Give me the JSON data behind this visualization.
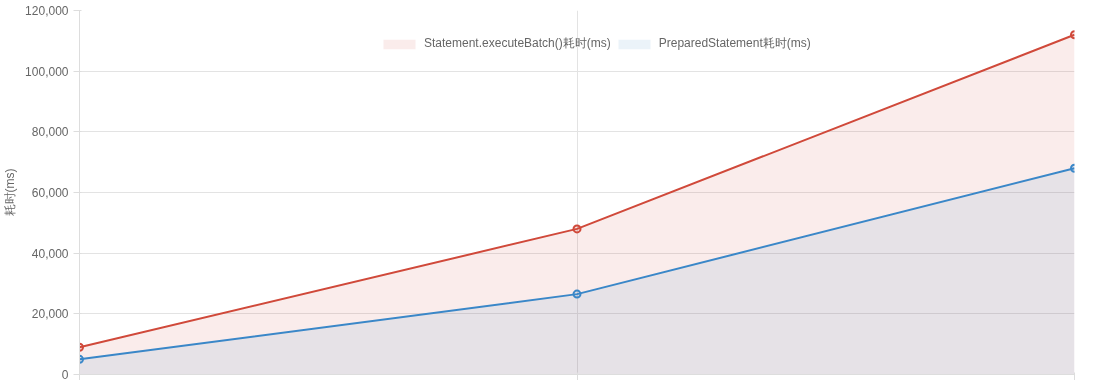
{
  "chart_data": {
    "type": "area",
    "ylabel": "耗时(ms)",
    "categories": [
      null,
      null,
      null
    ],
    "series": [
      {
        "name": "Statement.executeBatch()耗时(ms)",
        "color": "#d0493a",
        "values": [
          9000,
          48000,
          112000
        ]
      },
      {
        "name": "PreparedStatement耗时(ms)",
        "color": "#3a87c8",
        "values": [
          5000,
          26500,
          68000
        ]
      }
    ],
    "ylim": [
      0,
      120000
    ],
    "yticks": [
      {
        "value": 0,
        "label": "0"
      },
      {
        "value": 20000,
        "label": "20,000"
      },
      {
        "value": 40000,
        "label": "40,000"
      },
      {
        "value": 60000,
        "label": "60,000"
      },
      {
        "value": 80000,
        "label": "80,000"
      },
      {
        "value": 100000,
        "label": "100,000"
      },
      {
        "value": 120000,
        "label": "120,000"
      }
    ],
    "grid": true,
    "legend": "top",
    "marker": "circle",
    "line_style": "solid",
    "tick_labels": "y"
  }
}
